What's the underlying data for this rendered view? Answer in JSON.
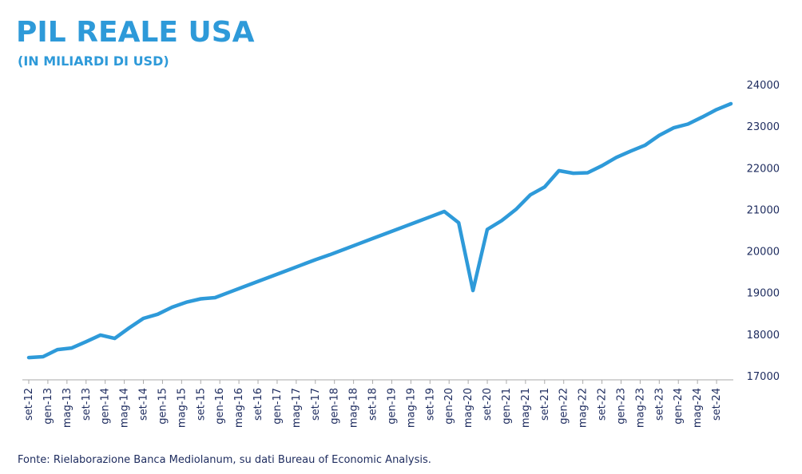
{
  "chart_data": {
    "type": "line",
    "title": "PIL REALE USA",
    "subtitle": "(IN MILIARDI DI USD)",
    "source": "Fonte: Rielaborazione Banca Mediolanum, su dati Bureau of Economic Analysis.",
    "color": "#2e9ad9",
    "x": [
      "2012-09",
      "2012-12",
      "2013-03",
      "2013-06",
      "2013-09",
      "2013-12",
      "2014-03",
      "2014-06",
      "2014-09",
      "2014-12",
      "2015-03",
      "2015-06",
      "2015-09",
      "2015-12",
      "2016-03",
      "2016-06",
      "2016-09",
      "2016-12",
      "2017-03",
      "2017-06",
      "2017-09",
      "2017-12",
      "2018-03",
      "2018-06",
      "2018-09",
      "2018-12",
      "2019-03",
      "2019-06",
      "2019-09",
      "2019-12",
      "2020-03",
      "2020-06",
      "2020-09",
      "2020-12",
      "2021-03",
      "2021-06",
      "2021-09",
      "2021-12",
      "2022-03",
      "2022-06",
      "2022-09",
      "2022-12",
      "2023-03",
      "2023-06",
      "2023-09",
      "2023-12",
      "2024-03",
      "2024-06",
      "2024-09",
      "2024-12"
    ],
    "values": [
      17440,
      17460,
      17630,
      17670,
      17820,
      17980,
      17900,
      18150,
      18380,
      18480,
      18650,
      18770,
      18850,
      18880,
      19010,
      19140,
      19270,
      19400,
      19530,
      19660,
      19790,
      19910,
      20040,
      20170,
      20300,
      20430,
      20560,
      20690,
      20820,
      20950,
      20680,
      19050,
      20520,
      20730,
      21000,
      21350,
      21540,
      21930,
      21870,
      21880,
      22050,
      22250,
      22400,
      22540,
      22780,
      22960,
      23050,
      23220,
      23400,
      23540
    ],
    "ylim": [
      17000,
      24000
    ],
    "yticks": [
      17000,
      18000,
      19000,
      20000,
      21000,
      22000,
      23000,
      24000
    ],
    "xticks": [
      {
        "value": "2012-09",
        "label": "set-12"
      },
      {
        "value": "2013-01",
        "label": "gen-13"
      },
      {
        "value": "2013-05",
        "label": "mag-13"
      },
      {
        "value": "2013-09",
        "label": "set-13"
      },
      {
        "value": "2014-01",
        "label": "gen-14"
      },
      {
        "value": "2014-05",
        "label": "mag-14"
      },
      {
        "value": "2014-09",
        "label": "set-14"
      },
      {
        "value": "2015-01",
        "label": "gen-15"
      },
      {
        "value": "2015-05",
        "label": "mag-15"
      },
      {
        "value": "2015-09",
        "label": "set-15"
      },
      {
        "value": "2016-01",
        "label": "gen-16"
      },
      {
        "value": "2016-05",
        "label": "mag-16"
      },
      {
        "value": "2016-09",
        "label": "set-16"
      },
      {
        "value": "2017-01",
        "label": "gen-17"
      },
      {
        "value": "2017-05",
        "label": "mag-17"
      },
      {
        "value": "2017-09",
        "label": "set-17"
      },
      {
        "value": "2018-01",
        "label": "gen-18"
      },
      {
        "value": "2018-05",
        "label": "mag-18"
      },
      {
        "value": "2018-09",
        "label": "set-18"
      },
      {
        "value": "2019-01",
        "label": "gen-19"
      },
      {
        "value": "2019-05",
        "label": "mag-19"
      },
      {
        "value": "2019-09",
        "label": "set-19"
      },
      {
        "value": "2020-01",
        "label": "gen-20"
      },
      {
        "value": "2020-05",
        "label": "mag-20"
      },
      {
        "value": "2020-09",
        "label": "set-20"
      },
      {
        "value": "2021-01",
        "label": "gen-21"
      },
      {
        "value": "2021-05",
        "label": "mag-21"
      },
      {
        "value": "2021-09",
        "label": "set-21"
      },
      {
        "value": "2022-01",
        "label": "gen-22"
      },
      {
        "value": "2022-05",
        "label": "mag-22"
      },
      {
        "value": "2022-09",
        "label": "set-22"
      },
      {
        "value": "2023-01",
        "label": "gen-23"
      },
      {
        "value": "2023-05",
        "label": "mag-23"
      },
      {
        "value": "2023-09",
        "label": "set-23"
      },
      {
        "value": "2024-01",
        "label": "gen-24"
      },
      {
        "value": "2024-05",
        "label": "mag-24"
      },
      {
        "value": "2024-09",
        "label": "set-24"
      }
    ]
  }
}
